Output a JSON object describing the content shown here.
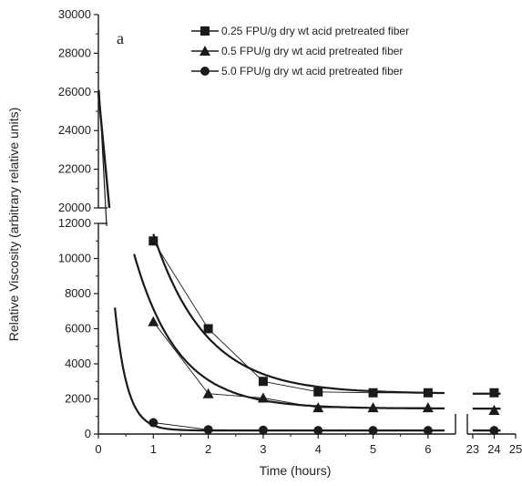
{
  "chart_data": {
    "type": "line",
    "panel_label": "a",
    "xlabel": "Time (hours)",
    "ylabel": "Relative Viscosity (arbitrary relative units)",
    "x_ticks": [
      "0",
      "1",
      "2",
      "3",
      "4",
      "5",
      "6",
      "23",
      "24",
      "25"
    ],
    "y_ticks_upper": [
      "20000",
      "22000",
      "24000",
      "26000",
      "28000",
      "30000"
    ],
    "y_ticks_lower": [
      "0",
      "2000",
      "4000",
      "6000",
      "8000",
      "10000",
      "12000"
    ],
    "xlim_main": [
      0,
      6.5
    ],
    "xlim_tail": [
      22.75,
      25
    ],
    "ylim_upper": [
      20000,
      30000
    ],
    "ylim_lower": [
      0,
      12000
    ],
    "marker_color": "#1a1a1a",
    "series": [
      {
        "name": "0.25 FPU/g dry wt acid pretreated fiber",
        "marker": "square",
        "x": [
          1,
          2,
          3,
          4,
          5,
          6,
          24
        ],
        "y": [
          11000,
          6000,
          3000,
          2400,
          2350,
          2350,
          2350
        ],
        "fit": {
          "a": 2300,
          "b": 9100,
          "k": 1.05,
          "x0": 1.0
        }
      },
      {
        "name": "0.5 FPU/g dry wt acid pretreated fiber",
        "marker": "triangle",
        "x": [
          1,
          2,
          3,
          4,
          5,
          6,
          24
        ],
        "y": [
          6400,
          2300,
          2050,
          1500,
          1500,
          1500,
          1350
        ],
        "fit": {
          "a": 1450,
          "b": 8800,
          "k": 1.25,
          "x0": 0.65
        }
      },
      {
        "name": "5.0 FPU/g dry wt acid pretreated fiber",
        "marker": "circle",
        "x": [
          1,
          2,
          3,
          4,
          5,
          6,
          24
        ],
        "y": [
          650,
          250,
          220,
          200,
          200,
          200,
          200
        ],
        "fit": {
          "a": 200,
          "b": 7000,
          "k": 4.5,
          "x0": 0.3
        }
      }
    ],
    "initial_segment": {
      "x": [
        0,
        0.2
      ],
      "y": [
        26000,
        20000
      ]
    }
  }
}
